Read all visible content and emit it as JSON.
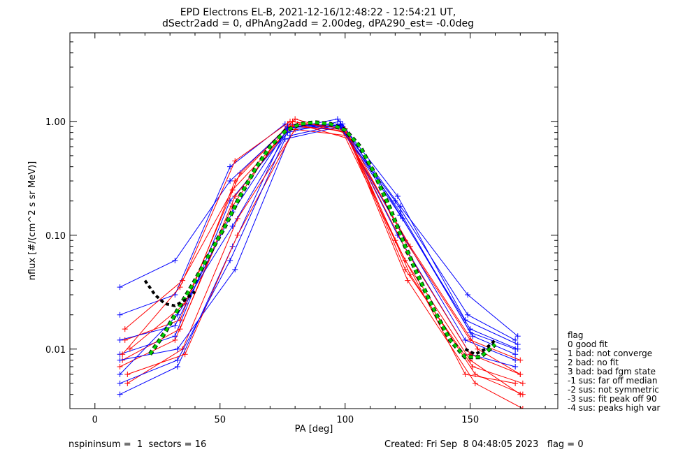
{
  "chart_data": {
    "type": "line",
    "title": "EPD Electrons EL-B, 2021-12-16/12:48:22 - 12:54:21 UT,",
    "subtitle": "dSectr2add = 0, dPhAng2add = 2.00deg, dPA290_est=  -0.0deg",
    "xlabel": "PA [deg]",
    "ylabel": "nflux [#/(cm^2 s sr MeV)]",
    "xlim": [
      -10,
      185
    ],
    "ylim": [
      0.003,
      6.0
    ],
    "yscale": "log",
    "xticks": [
      {
        "v": 0,
        "label": "0"
      },
      {
        "v": 50,
        "label": "50"
      },
      {
        "v": 100,
        "label": "100"
      },
      {
        "v": 150,
        "label": "150"
      }
    ],
    "yticks": [
      {
        "v": 0.01,
        "label": "0.01"
      },
      {
        "v": 0.1,
        "label": "0.10"
      },
      {
        "v": 1,
        "label": "1.00"
      }
    ],
    "grid": false,
    "colors": {
      "red": "#ff0000",
      "blue": "#0000ff",
      "fit": "#00cc00",
      "fit_edge": "#000000"
    },
    "series": [
      {
        "color": "red",
        "x": [
          10,
          32,
          55,
          77,
          98,
          120,
          148,
          168
        ],
        "y": [
          0.007,
          0.012,
          0.18,
          0.95,
          0.9,
          0.09,
          0.006,
          0.005
        ]
      },
      {
        "color": "blue",
        "x": [
          10,
          32,
          54,
          78,
          98,
          121,
          148,
          168
        ],
        "y": [
          0.009,
          0.013,
          0.2,
          0.85,
          0.92,
          0.12,
          0.012,
          0.008
        ]
      },
      {
        "color": "red",
        "x": [
          12,
          34,
          56,
          79,
          100,
          124,
          150,
          170
        ],
        "y": [
          0.012,
          0.018,
          0.3,
          1.0,
          0.8,
          0.06,
          0.008,
          0.004
        ]
      },
      {
        "color": "blue",
        "x": [
          10,
          33,
          55,
          77,
          97,
          122,
          150,
          169
        ],
        "y": [
          0.004,
          0.007,
          0.08,
          0.9,
          0.95,
          0.15,
          0.015,
          0.01
        ]
      },
      {
        "color": "red",
        "x": [
          13,
          35,
          57,
          80,
          101,
          125,
          152,
          171
        ],
        "y": [
          0.005,
          0.01,
          0.14,
          0.85,
          0.75,
          0.04,
          0.005,
          0.003
        ]
      },
      {
        "color": "blue",
        "x": [
          10,
          32,
          54,
          76,
          98,
          120,
          149,
          168
        ],
        "y": [
          0.02,
          0.03,
          0.4,
          0.95,
          0.88,
          0.2,
          0.02,
          0.012
        ]
      },
      {
        "color": "red",
        "x": [
          11,
          34,
          56,
          78,
          99,
          126,
          153,
          170
        ],
        "y": [
          0.008,
          0.015,
          0.22,
          0.9,
          0.85,
          0.08,
          0.01,
          0.006
        ]
      },
      {
        "color": "blue",
        "x": [
          10,
          33,
          55,
          77,
          98,
          121,
          150,
          168
        ],
        "y": [
          0.006,
          0.02,
          0.12,
          0.8,
          1.0,
          0.1,
          0.009,
          0.007
        ]
      },
      {
        "color": "red",
        "x": [
          14,
          36,
          58,
          80,
          101,
          124,
          151,
          171
        ],
        "y": [
          0.01,
          0.025,
          0.35,
          1.05,
          0.78,
          0.05,
          0.007,
          0.005
        ]
      },
      {
        "color": "blue",
        "x": [
          10,
          32,
          54,
          77,
          98,
          122,
          149,
          169
        ],
        "y": [
          0.035,
          0.06,
          0.3,
          0.88,
          0.93,
          0.18,
          0.03,
          0.013
        ]
      },
      {
        "color": "red",
        "x": [
          12,
          35,
          55,
          79,
          100,
          125,
          150,
          170
        ],
        "y": [
          0.015,
          0.04,
          0.25,
          0.92,
          0.82,
          0.07,
          0.009,
          0.006
        ]
      },
      {
        "color": "blue",
        "x": [
          10,
          33,
          56,
          78,
          99,
          123,
          151,
          168
        ],
        "y": [
          0.008,
          0.01,
          0.05,
          0.75,
          0.95,
          0.14,
          0.013,
          0.009
        ]
      },
      {
        "color": "red",
        "x": [
          13,
          36,
          57,
          81,
          102,
          126,
          152,
          171
        ],
        "y": [
          0.006,
          0.009,
          0.1,
          0.95,
          0.7,
          0.045,
          0.006,
          0.004
        ]
      },
      {
        "color": "blue",
        "x": [
          10,
          32,
          55,
          77,
          97,
          121,
          148,
          169
        ],
        "y": [
          0.012,
          0.016,
          0.16,
          0.86,
          1.05,
          0.22,
          0.018,
          0.011
        ]
      },
      {
        "color": "red",
        "x": [
          11,
          34,
          56,
          78,
          100,
          124,
          150,
          170
        ],
        "y": [
          0.009,
          0.035,
          0.45,
          1.0,
          0.86,
          0.09,
          0.012,
          0.008
        ]
      },
      {
        "color": "blue",
        "x": [
          10,
          33,
          54,
          76,
          98,
          122,
          150,
          168
        ],
        "y": [
          0.005,
          0.008,
          0.06,
          0.7,
          0.9,
          0.16,
          0.014,
          0.01
        ]
      }
    ],
    "fit": {
      "x": [
        22,
        28,
        34,
        40,
        46,
        52,
        58,
        64,
        70,
        76,
        82,
        88,
        94,
        100,
        106,
        112,
        118,
        124,
        130,
        136,
        142,
        148,
        154,
        160
      ],
      "y": [
        0.009,
        0.014,
        0.024,
        0.04,
        0.07,
        0.12,
        0.22,
        0.38,
        0.6,
        0.82,
        0.95,
        0.98,
        0.95,
        0.84,
        0.6,
        0.34,
        0.17,
        0.08,
        0.04,
        0.021,
        0.012,
        0.0085,
        0.0085,
        0.011
      ]
    },
    "dashed": {
      "x": [
        20,
        24,
        28,
        32,
        36,
        40
      ],
      "y": [
        0.04,
        0.03,
        0.025,
        0.024,
        0.027,
        0.032
      ]
    },
    "dashed_right": {
      "x": [
        148,
        152,
        156,
        160
      ],
      "y": [
        0.01,
        0.009,
        0.01,
        0.012
      ]
    },
    "legend": {
      "title": "flag",
      "entries": [
        " 0 good fit",
        " 1 bad: not converge",
        " 2 bad: no fit",
        " 3 bad: bad fgm state",
        "-1 sus: far off median",
        "-2 sus: not symmetric",
        "-3 sus: fit peak off 90",
        "-4 sus: peaks high var"
      ]
    },
    "footer": {
      "left": "nspininsum =  1  sectors = 16",
      "right": "Created: Fri Sep  8 04:48:05 2023   flag = 0"
    }
  }
}
